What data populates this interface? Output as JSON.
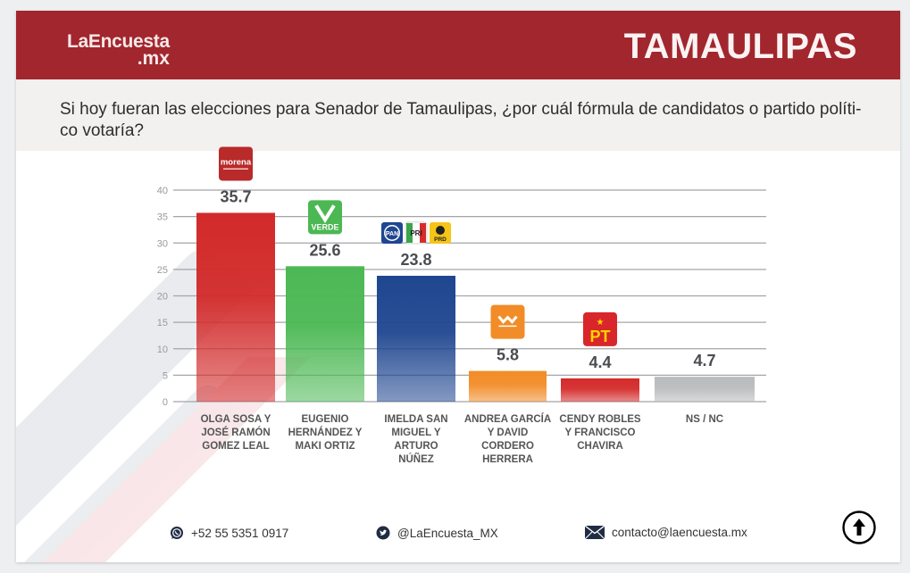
{
  "header": {
    "logo_line1": "LaEncuesta",
    "logo_line2": ".mx",
    "region": "TAMAULIPAS",
    "brand_color": "#a2262d"
  },
  "question": "Si hoy fueran las elecciones para Senador de Tamaulipas, ¿por cuál fórmula de candidatos o partido políti-co votaría?",
  "chart_data": {
    "type": "bar",
    "title": "",
    "xlabel": "",
    "ylabel": "",
    "ylim": [
      0,
      40
    ],
    "yticks": [
      0,
      5,
      10,
      15,
      20,
      25,
      30,
      35,
      40
    ],
    "grid": true,
    "categories": [
      "OLGA SOSA Y JOSÉ RAMÓN GOMEZ LEAL",
      "EUGENIO HERNÁNDEZ Y MAKI ORTIZ",
      "IMELDA SAN MIGUEL Y ARTURO NÚÑEZ",
      "ANDREA GARCÍA Y DAVID CORDERO HERRERA",
      "CENDY ROBLES Y FRANCISCO CHAVIRA",
      "NS / NC"
    ],
    "category_lines": [
      [
        "OLGA SOSA Y",
        "JOSÉ RAMÓN",
        "GOMEZ LEAL"
      ],
      [
        "EUGENIO",
        "HERNÁNDEZ Y",
        "MAKI ORTIZ"
      ],
      [
        "IMELDA SAN",
        "MIGUEL Y",
        "ARTURO",
        "NÚÑEZ"
      ],
      [
        "ANDREA GARCÍA",
        "Y DAVID",
        "CORDERO",
        "HERRERA"
      ],
      [
        "CENDY ROBLES",
        "Y FRANCISCO",
        "CHAVIRA"
      ],
      [
        "NS / NC"
      ]
    ],
    "values": [
      35.7,
      25.6,
      23.8,
      5.8,
      4.4,
      4.7
    ],
    "value_labels": [
      "35.7",
      "25.6",
      "23.8",
      "5.8",
      "4.4",
      "4.7"
    ],
    "parties": [
      [
        "morena"
      ],
      [
        "VERDE"
      ],
      [
        "PAN",
        "PRI",
        "PRD"
      ],
      [
        "MC"
      ],
      [
        "PT"
      ],
      []
    ],
    "colors": [
      "#d22a2a",
      "#4cb854",
      "#1f4690",
      "#f28c28",
      "#d42b2b",
      "#b9bbbd"
    ]
  },
  "footer": {
    "phone": "+52 55 5351 0917",
    "twitter": "@LaEncuesta_MX",
    "email": "contacto@laencuesta.mx"
  }
}
